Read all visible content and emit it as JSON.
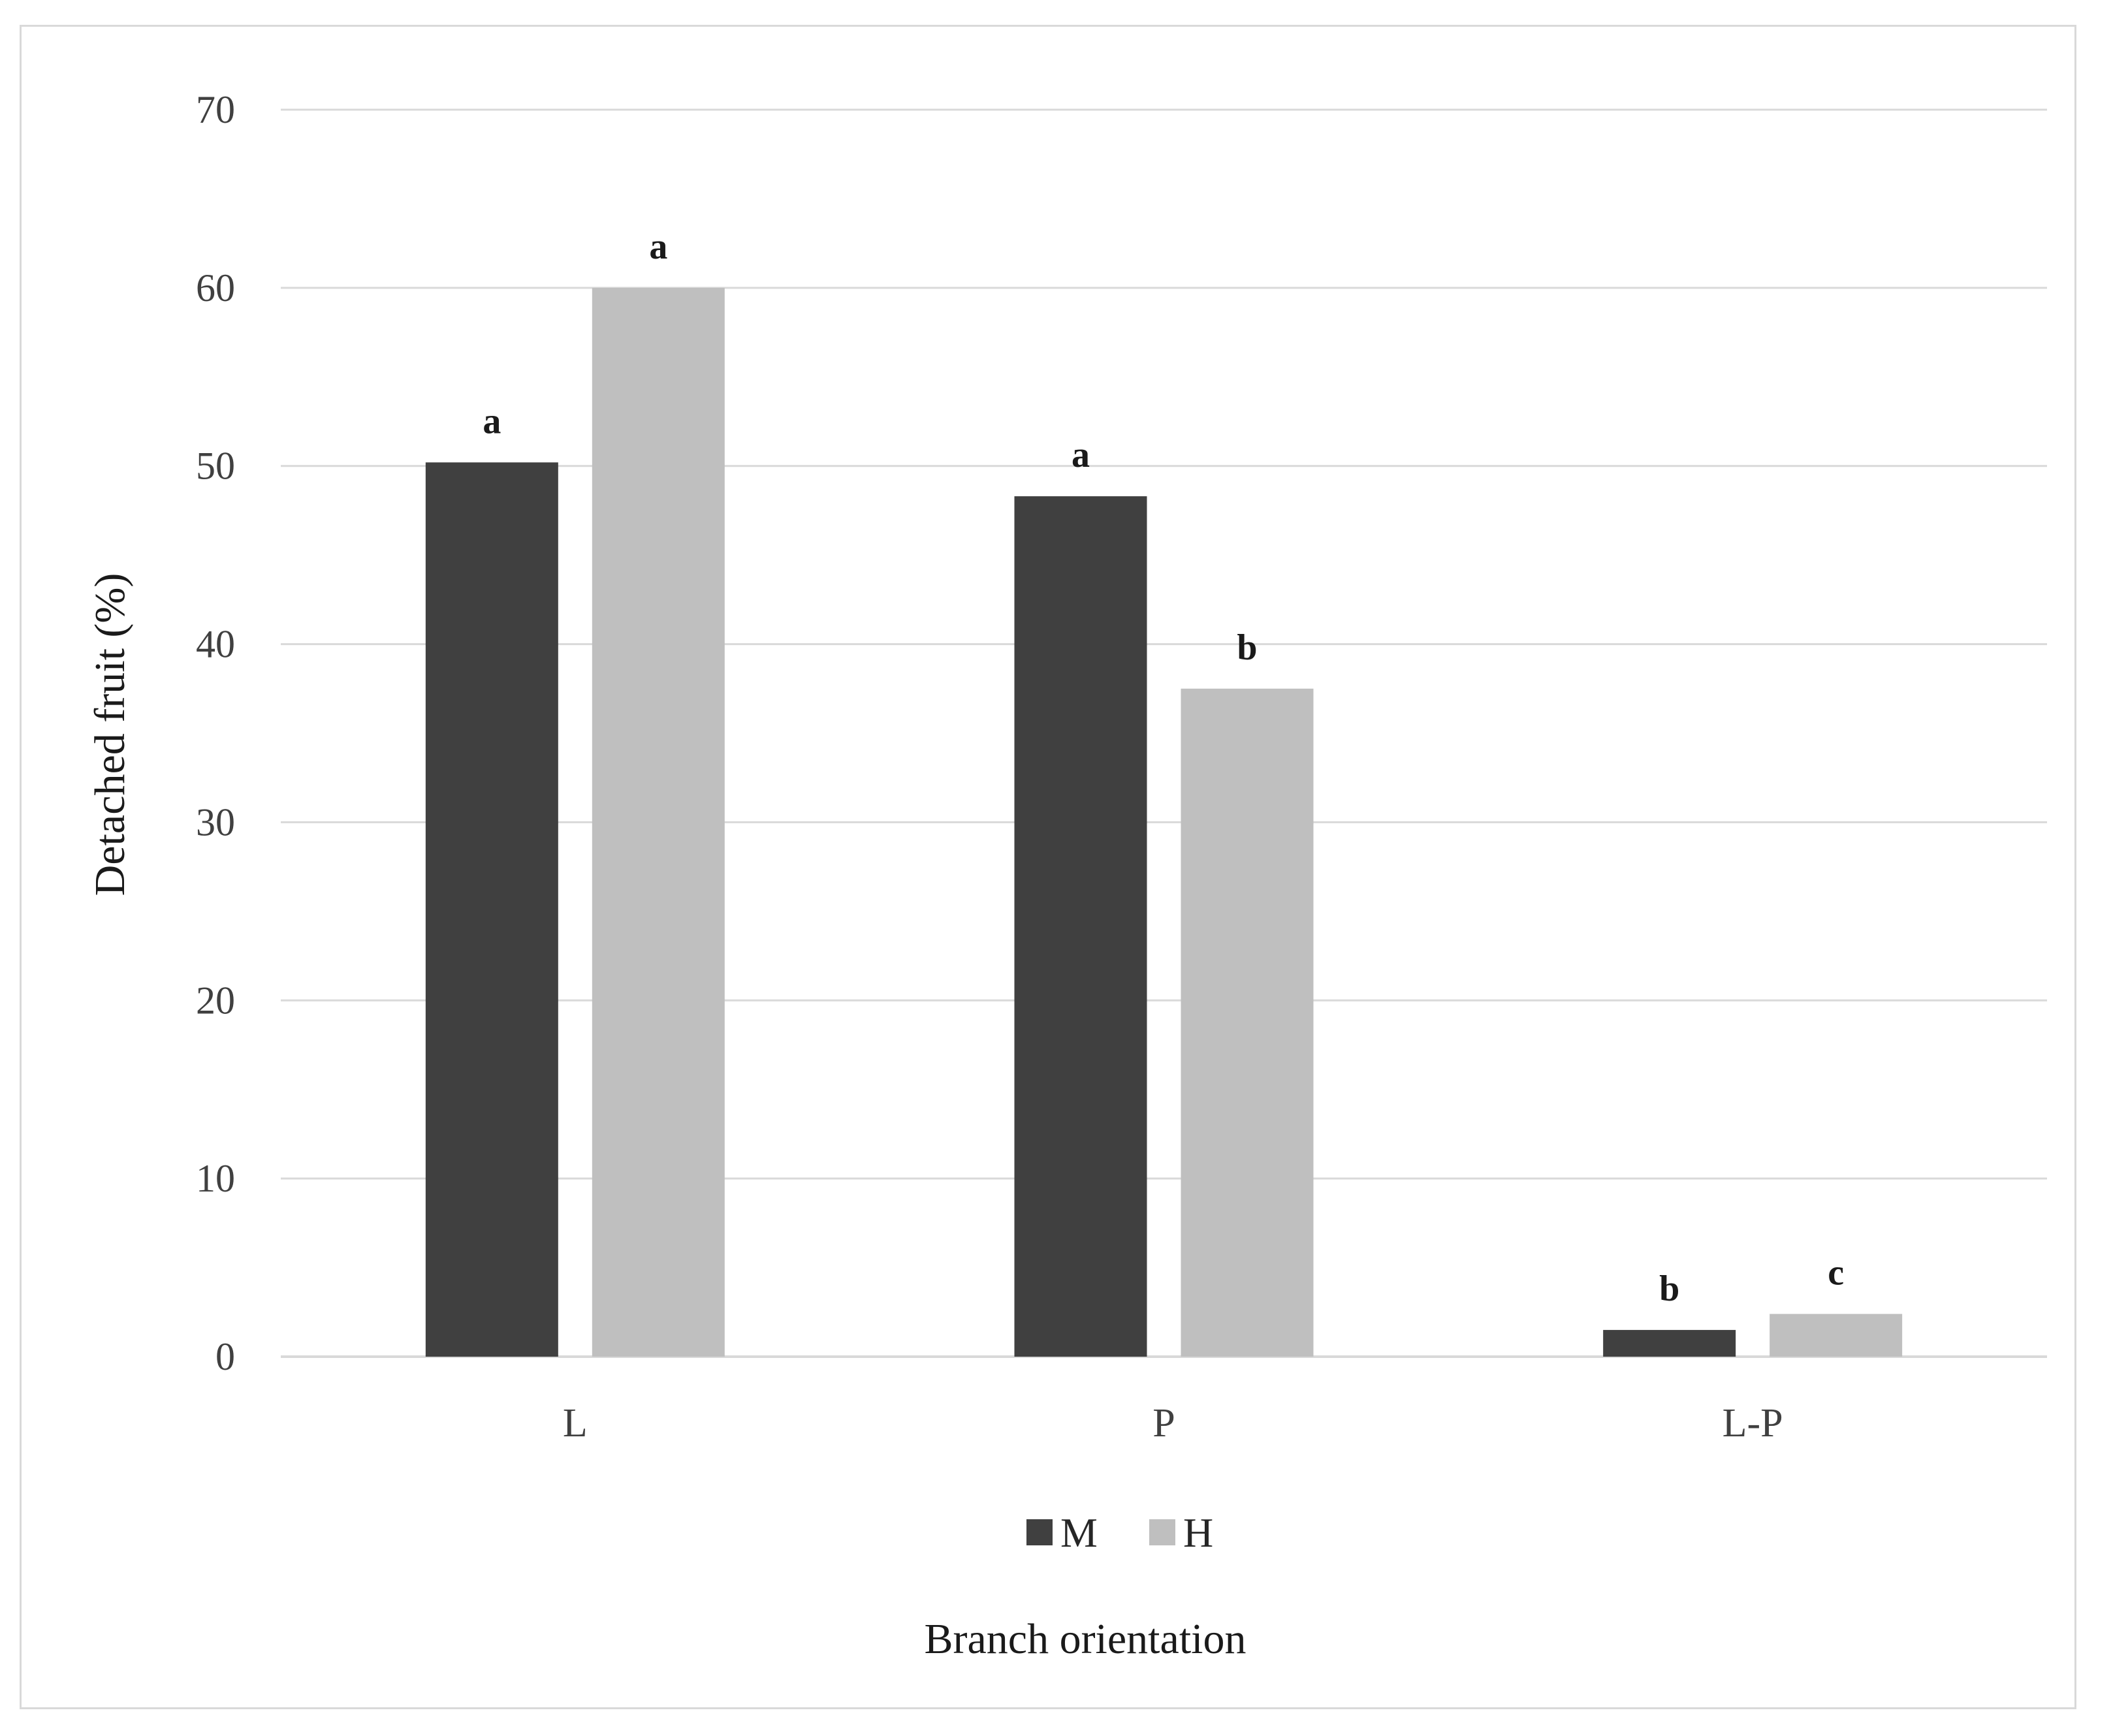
{
  "chart_data": {
    "type": "bar",
    "categories": [
      "L",
      "P",
      "L-P"
    ],
    "series": [
      {
        "name": "M",
        "color": "#404040",
        "values": [
          50.2,
          48.3,
          1.5
        ],
        "labels": [
          "a",
          "a",
          "b"
        ]
      },
      {
        "name": "H",
        "color": "#bfbfbf",
        "values": [
          60.0,
          37.5,
          2.4
        ],
        "labels": [
          "a",
          "b",
          "c"
        ]
      }
    ],
    "xlabel": "Branch orientation",
    "ylabel": "Detached fruit (%)",
    "ylim": [
      0,
      70
    ],
    "yticks": [
      0,
      10,
      20,
      30,
      40,
      50,
      60,
      70
    ],
    "grid": true,
    "legend_position": "bottom",
    "gridline_color": "#d9d9d9"
  }
}
